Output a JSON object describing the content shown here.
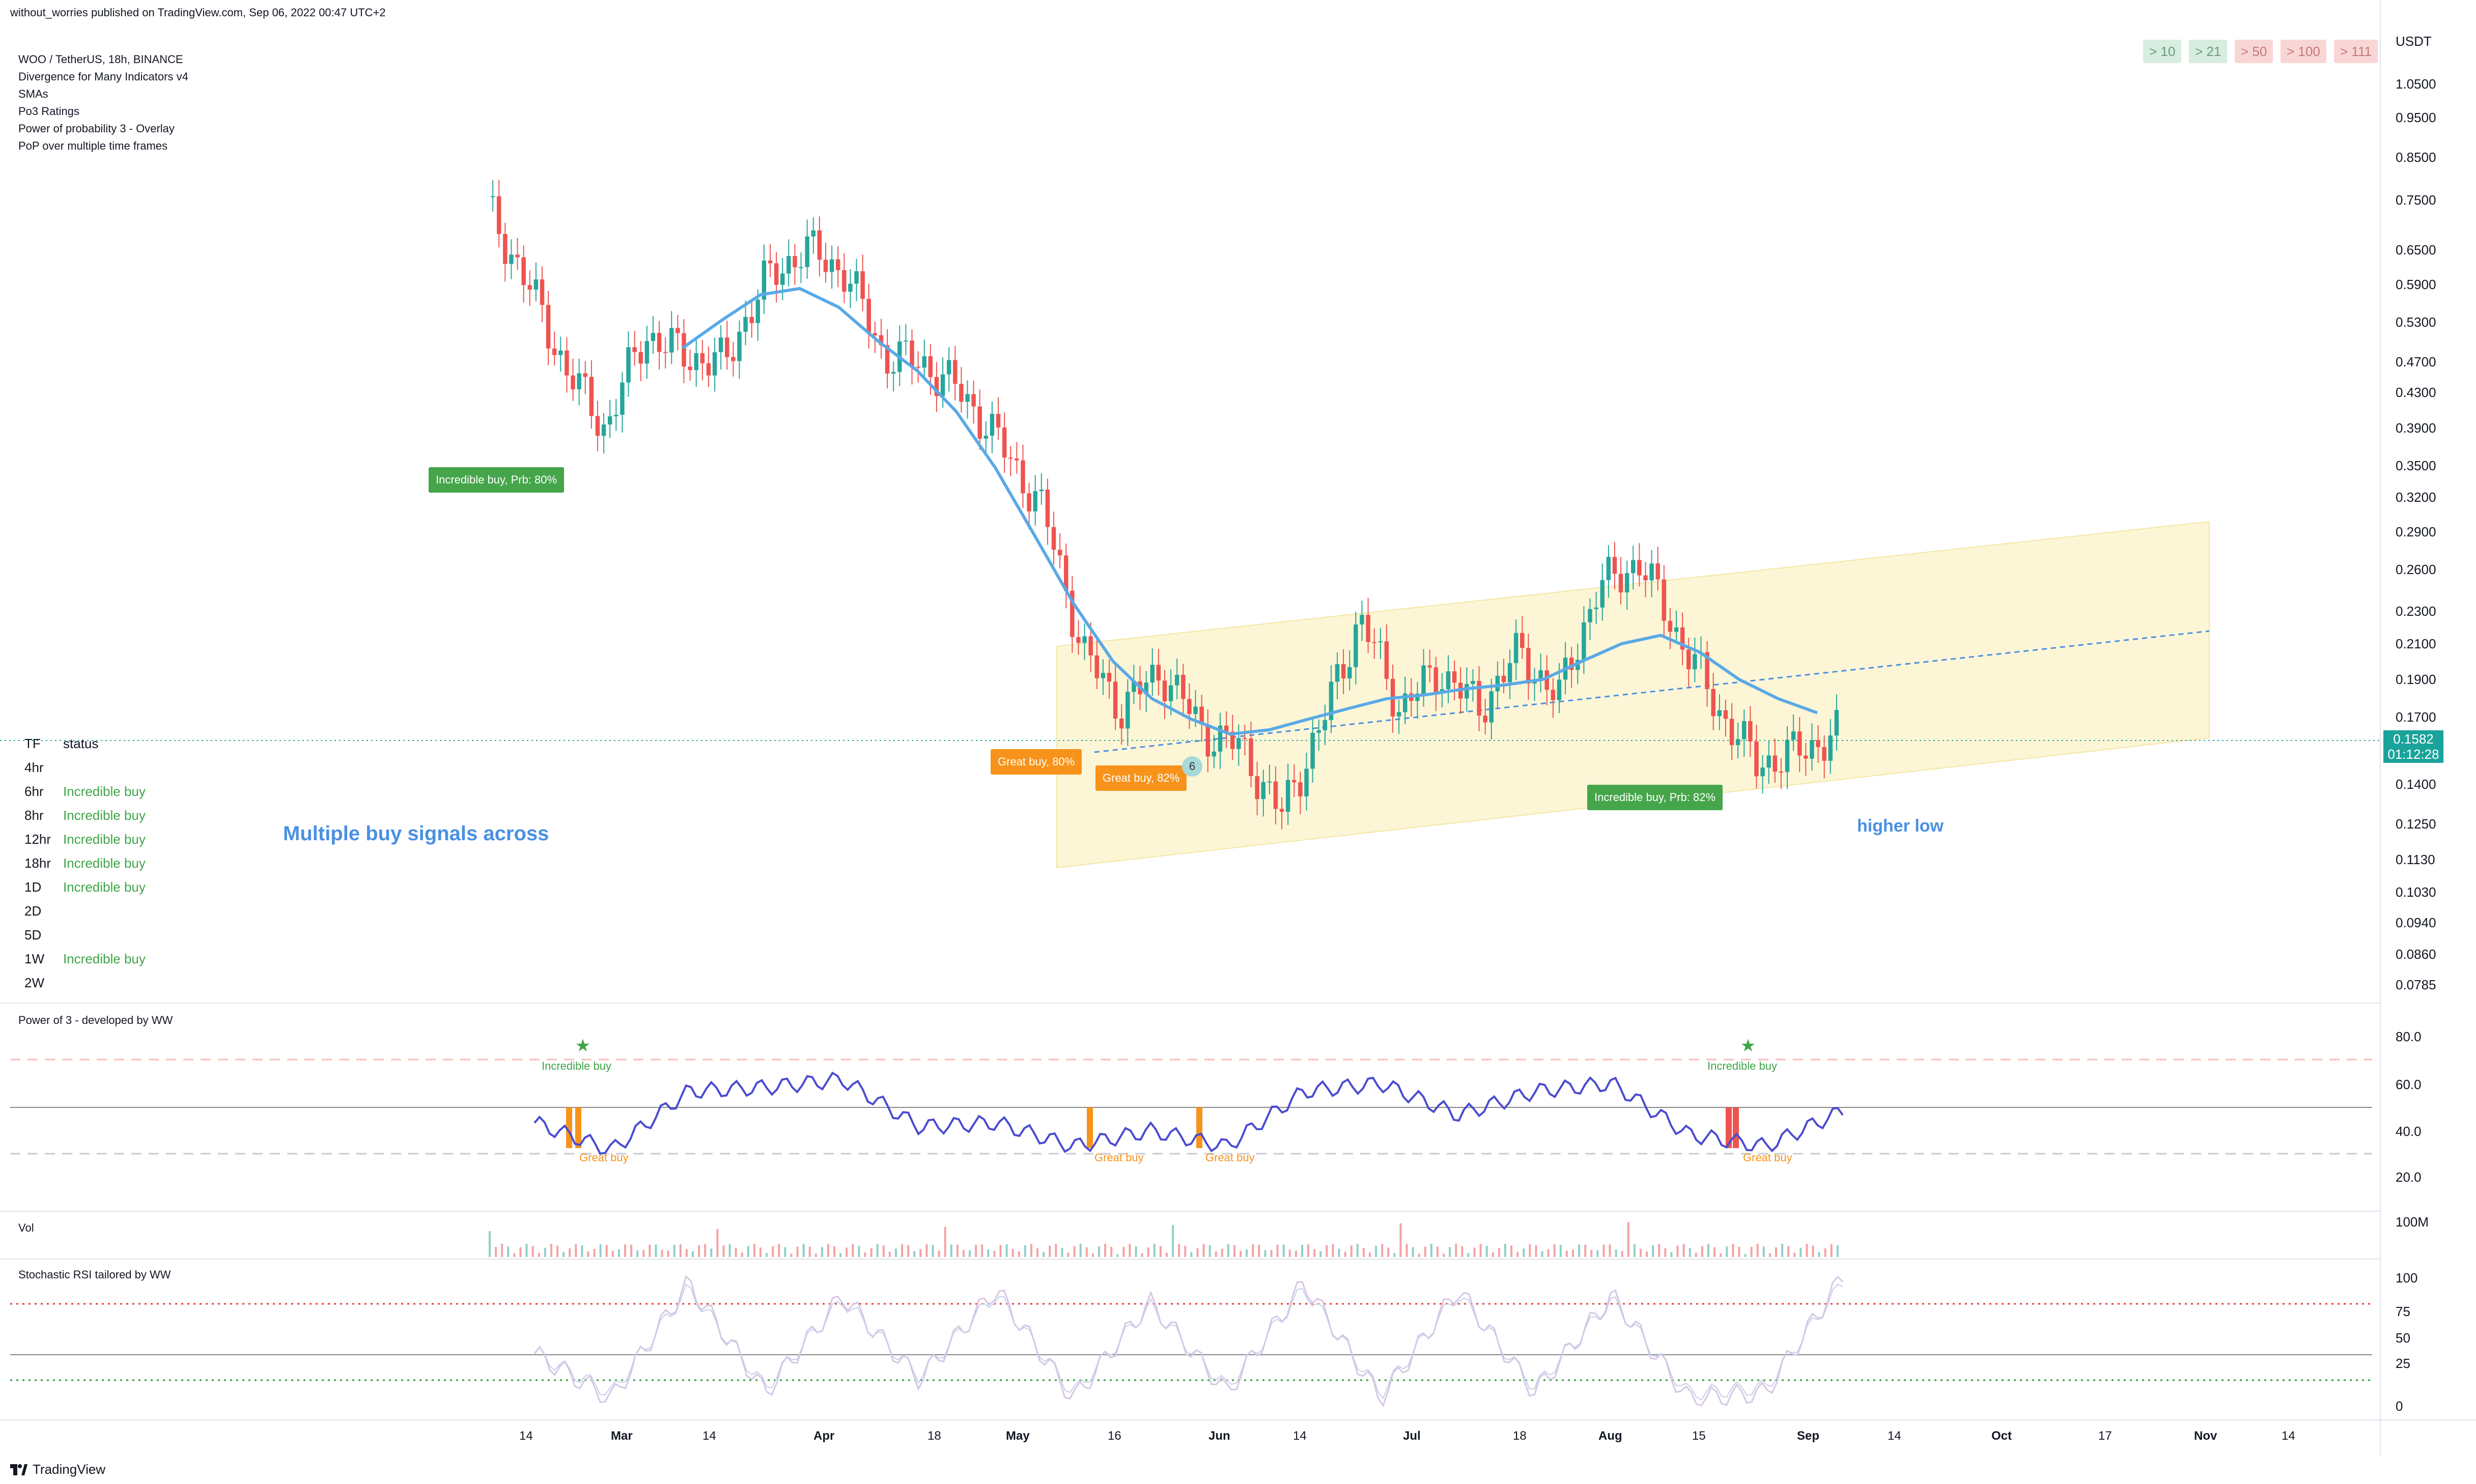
{
  "header": {
    "published_by": "without_worries published on TradingView.com, Sep 06, 2022 00:47 UTC+2"
  },
  "legend": {
    "lines": [
      "WOO / TetherUS, 18h, BINANCE",
      "Divergence for Many Indicators v4",
      "SMAs",
      "Po3 Ratings",
      "Power of probability 3 - Overlay",
      "PoP over multiple time frames"
    ]
  },
  "counters": [
    {
      "label": "> 10",
      "tone": "green"
    },
    {
      "label": "> 21",
      "tone": "green"
    },
    {
      "label": "> 50",
      "tone": "red"
    },
    {
      "label": "> 100",
      "tone": "red"
    },
    {
      "label": "> 111",
      "tone": "red"
    }
  ],
  "price_axis": {
    "currency": "USDT",
    "ticks": [
      "1.0500",
      "0.9500",
      "0.8500",
      "0.7500",
      "0.6500",
      "0.5900",
      "0.5300",
      "0.4700",
      "0.4300",
      "0.3900",
      "0.3500",
      "0.3200",
      "0.2900",
      "0.2600",
      "0.2300",
      "0.2100",
      "0.1900",
      "0.1700",
      "0.1400",
      "0.1250",
      "0.1130",
      "0.1030",
      "0.0940",
      "0.0860",
      "0.0785"
    ],
    "last_price": "0.1582",
    "countdown": "01:12:28"
  },
  "tf_table": {
    "header": {
      "tf": "TF",
      "status": "status"
    },
    "rows": [
      {
        "tf": "4hr",
        "status": ""
      },
      {
        "tf": "6hr",
        "status": "Incredible buy"
      },
      {
        "tf": "8hr",
        "status": "Incredible buy"
      },
      {
        "tf": "12hr",
        "status": "Incredible buy"
      },
      {
        "tf": "18hr",
        "status": "Incredible buy"
      },
      {
        "tf": "1D",
        "status": "Incredible buy"
      },
      {
        "tf": "2D",
        "status": ""
      },
      {
        "tf": "5D",
        "status": ""
      },
      {
        "tf": "1W",
        "status": "Incredible buy"
      },
      {
        "tf": "2W",
        "status": ""
      }
    ]
  },
  "annotations": {
    "note_left": "Multiple buy signals across",
    "note_right": "higher low",
    "tag1": "Incredible buy, Prb: 80%",
    "tag2": "Great buy,  80%",
    "tag3": "Great buy,  82%",
    "tag4": "Incredible buy, Prb: 82%",
    "badge": "6"
  },
  "panes": {
    "po3": {
      "title": "Power of 3 - developed by WW",
      "ticks": [
        "80.0",
        "60.0",
        "40.0",
        "20.0"
      ],
      "labels": [
        "Incredible buy",
        "Incredible buy",
        "Great buy",
        "Great buy",
        "Great buy",
        "Great buy"
      ]
    },
    "vol": {
      "title": "Vol",
      "tick": "100M"
    },
    "stoch": {
      "title": "Stochastic RSI tailored by WW",
      "ticks": [
        "100",
        "75",
        "50",
        "25",
        "0"
      ]
    }
  },
  "time_axis": {
    "labels": [
      {
        "t": "14",
        "bold": false
      },
      {
        "t": "Mar",
        "bold": true
      },
      {
        "t": "14",
        "bold": false
      },
      {
        "t": "Apr",
        "bold": true
      },
      {
        "t": "18",
        "bold": false
      },
      {
        "t": "May",
        "bold": true
      },
      {
        "t": "16",
        "bold": false
      },
      {
        "t": "Jun",
        "bold": true
      },
      {
        "t": "14",
        "bold": false
      },
      {
        "t": "Jul",
        "bold": true
      },
      {
        "t": "18",
        "bold": false
      },
      {
        "t": "Aug",
        "bold": true
      },
      {
        "t": "15",
        "bold": false
      },
      {
        "t": "Sep",
        "bold": true
      },
      {
        "t": "14",
        "bold": false
      },
      {
        "t": "Oct",
        "bold": true
      },
      {
        "t": "17",
        "bold": false
      },
      {
        "t": "Nov",
        "bold": true
      },
      {
        "t": "14",
        "bold": false
      }
    ]
  },
  "footer": {
    "brand": "TradingView"
  },
  "colors": {
    "up": "#26a69a",
    "down": "#ef5350",
    "sma": "#5aa9e6",
    "channel_fill": "#fdf6d6",
    "tag_green": "#45a54a",
    "tag_orange": "#f7931a",
    "note_blue": "#4a90e2"
  },
  "chart_data": [
    {
      "type": "line",
      "title": "WOO / TetherUS, 18h, BINANCE",
      "note": "approximate close path, price in USDT (log scale)",
      "x": [
        "Feb 16",
        "Feb 22",
        "Feb 28",
        "Mar 6",
        "Mar 12",
        "Mar 18",
        "Mar 24",
        "Mar 30",
        "Apr 5",
        "Apr 11",
        "Apr 17",
        "Apr 23",
        "Apr 29",
        "May 5",
        "May 11",
        "May 17",
        "May 23",
        "May 29",
        "Jun 4",
        "Jun 10",
        "Jun 16",
        "Jun 22",
        "Jun 28",
        "Jul 4",
        "Jul 10",
        "Jul 16",
        "Jul 22",
        "Jul 28",
        "Aug 3",
        "Aug 9",
        "Aug 15",
        "Aug 21",
        "Aug 27",
        "Sep 2",
        "Sep 6"
      ],
      "series": [
        {
          "values": [
            0.72,
            0.58,
            0.45,
            0.38,
            0.5,
            0.47,
            0.46,
            0.58,
            0.64,
            0.6,
            0.47,
            0.46,
            0.42,
            0.36,
            0.3,
            0.2,
            0.17,
            0.19,
            0.16,
            0.152,
            0.125,
            0.16,
            0.22,
            0.17,
            0.19,
            0.17,
            0.2,
            0.175,
            0.24,
            0.26,
            0.21,
            0.17,
            0.145,
            0.15,
            0.158
          ]
        },
        {
          "values": [
            0.0,
            0.0,
            0.0,
            0.0,
            0.0,
            0.48,
            0.52,
            0.56,
            0.57,
            0.54,
            0.49,
            0.45,
            0.4,
            0.34,
            0.28,
            0.23,
            0.195,
            0.175,
            0.165,
            0.158,
            0.16,
            0.165,
            0.17,
            0.175,
            0.177,
            0.18,
            0.182,
            0.185,
            0.195,
            0.205,
            0.21,
            0.2,
            0.185,
            0.175,
            0.168
          ]
        }
      ],
      "yscale": "log",
      "ylim": [
        0.0785,
        1.05
      ]
    },
    {
      "type": "line",
      "title": "Power of 3 - developed by WW",
      "x": [
        "Feb 16",
        "Feb 28",
        "Mar 12",
        "Mar 24",
        "Apr 5",
        "Apr 17",
        "Apr 29",
        "May 11",
        "May 23",
        "Jun 4",
        "Jun 16",
        "Jun 28",
        "Jul 10",
        "Jul 22",
        "Aug 3",
        "Aug 15",
        "Aug 27",
        "Sep 6"
      ],
      "series": [
        {
          "values": [
            42,
            28,
            58,
            60,
            64,
            40,
            42,
            30,
            38,
            30,
            58,
            62,
            46,
            58,
            62,
            36,
            30,
            48
          ]
        }
      ],
      "ylim": [
        10,
        85
      ]
    },
    {
      "type": "line",
      "title": "Stochastic RSI tailored by WW",
      "x": [
        "Feb 16",
        "Feb 28",
        "Mar 12",
        "Mar 24",
        "Apr 5",
        "Apr 17",
        "Apr 29",
        "May 11",
        "May 23",
        "Jun 4",
        "Jun 16",
        "Jun 28",
        "Jul 10",
        "Jul 22",
        "Aug 3",
        "Aug 15",
        "Aug 27",
        "Sep 6"
      ],
      "series": [
        {
          "values": [
            40,
            5,
            95,
            10,
            85,
            20,
            90,
            5,
            80,
            10,
            95,
            5,
            90,
            10,
            85,
            5,
            10,
            100
          ]
        }
      ],
      "ylim": [
        0,
        100
      ]
    }
  ]
}
